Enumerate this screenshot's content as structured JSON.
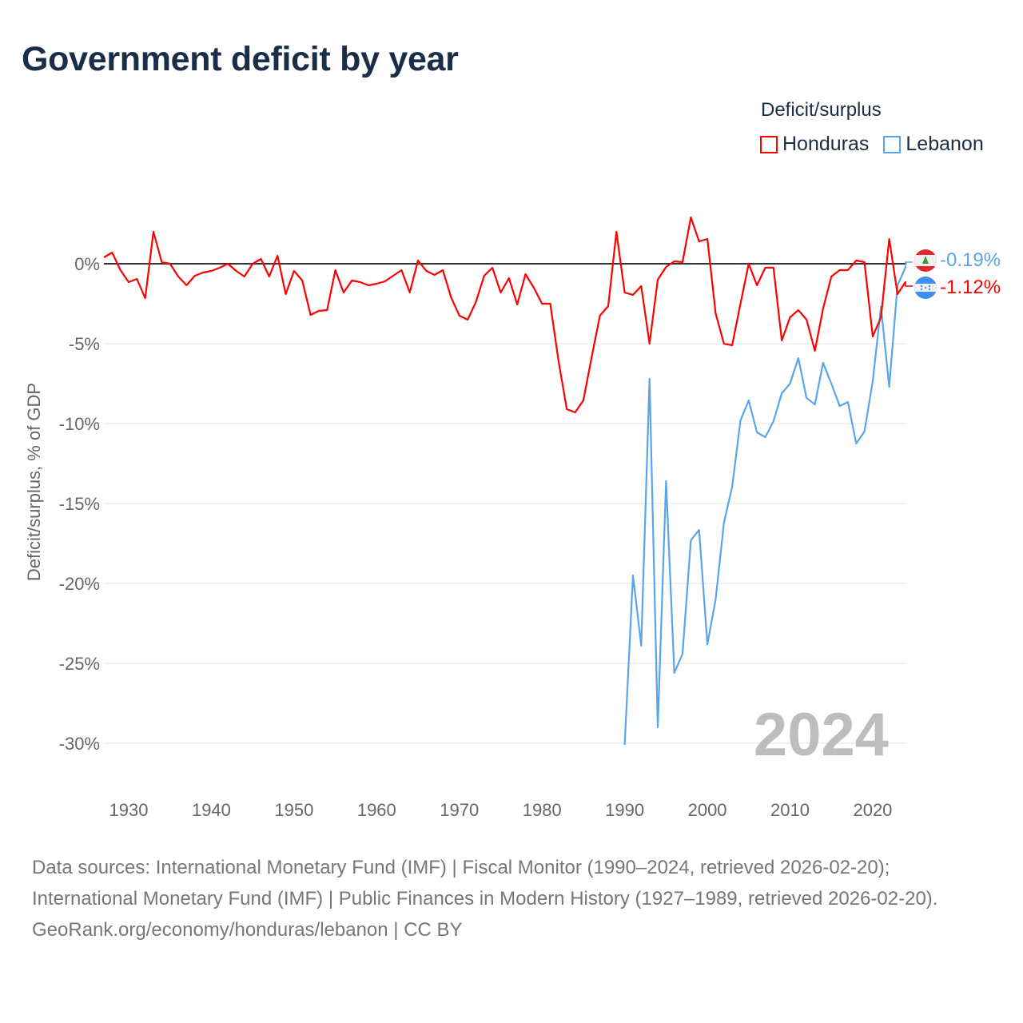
{
  "title": "Government deficit by year",
  "legend": {
    "title": "Deficit/surplus",
    "items": [
      {
        "name": "Honduras",
        "color": "#ff0000"
      },
      {
        "name": "Lebanon",
        "color": "#5aa5ea"
      }
    ]
  },
  "watermark_year": "2024",
  "end_labels": {
    "lebanon": "-0.19%",
    "honduras": "-1.12%"
  },
  "footer": {
    "sources": "Data sources: International Monetary Fund (IMF) | Fiscal Monitor (1990–2024, retrieved 2026-02-20); International Monetary Fund (IMF) | Public Finances in Modern History (1927–1989, retrieved 2026-02-20).",
    "credit": "GeoRank.org/economy/honduras/lebanon | CC BY"
  },
  "chart_data": {
    "type": "line",
    "title": "Government deficit by year",
    "xlabel": "",
    "ylabel": "Deficit/surplus, % of GDP",
    "xlim": [
      1927,
      2024
    ],
    "ylim": [
      -33,
      3
    ],
    "x_ticks": [
      1930,
      1940,
      1950,
      1960,
      1970,
      1980,
      1990,
      2000,
      2010,
      2020
    ],
    "y_ticks": [
      0,
      -5,
      -10,
      -15,
      -20,
      -25,
      -30
    ],
    "y_tick_labels": [
      "0%",
      "-5%",
      "-10%",
      "-15%",
      "-20%",
      "-25%",
      "-30%"
    ],
    "grid": true,
    "legend_position": "top-right",
    "series": [
      {
        "name": "Honduras",
        "color": "#ff0000",
        "start_year": 1927,
        "values": [
          0.4,
          0.7,
          -0.4,
          -1.15,
          -0.95,
          -2.15,
          2.0,
          0.1,
          0,
          -0.8,
          -1.35,
          -0.75,
          -0.55,
          -0.45,
          -0.25,
          0,
          -0.45,
          -0.8,
          0,
          0.3,
          -0.8,
          0.5,
          -1.9,
          -0.45,
          -1.05,
          -3.2,
          -2.95,
          -2.9,
          -0.4,
          -1.8,
          -1.05,
          -1.15,
          -1.35,
          -1.25,
          -1.1,
          -0.75,
          -0.4,
          -1.8,
          0.2,
          -0.45,
          -0.7,
          -0.4,
          -2.1,
          -3.25,
          -3.5,
          -2.4,
          -0.75,
          -0.25,
          -1.8,
          -0.9,
          -2.55,
          -0.65,
          -1.5,
          -2.5,
          -2.5,
          -6.1,
          -9.1,
          -9.3,
          -8.55,
          -5.85,
          -3.25,
          -2.65,
          2.0,
          -1.8,
          -1.95,
          -1.4,
          -5.0,
          -1.0,
          -0.2,
          0.15,
          0.1,
          2.9,
          1.4,
          1.55,
          -3.1,
          -5.0,
          -5.1,
          -2.5,
          0,
          -1.35,
          -0.25,
          -0.25,
          -4.8,
          -3.35,
          -2.9,
          -3.5,
          -5.45,
          -2.8,
          -0.8,
          -0.4,
          -0.4,
          0.2,
          0.1,
          -4.55,
          -3.35,
          1.55,
          -1.9,
          -1.12
        ]
      },
      {
        "name": "Lebanon",
        "color": "#5aa5ea",
        "start_year": 1990,
        "values": [
          -30.1,
          -19.5,
          -23.9,
          -7.2,
          -29.0,
          -13.6,
          -25.6,
          -24.4,
          -17.3,
          -16.65,
          -23.8,
          -21.0,
          -16.2,
          -13.95,
          -9.8,
          -8.55,
          -10.55,
          -10.85,
          -9.85,
          -8.1,
          -7.5,
          -5.9,
          -8.4,
          -8.8,
          -6.2,
          -7.5,
          -8.9,
          -8.65,
          -11.25,
          -10.5,
          -7.35,
          -2.7,
          -7.7,
          -1.35,
          -0.19
        ]
      }
    ]
  }
}
